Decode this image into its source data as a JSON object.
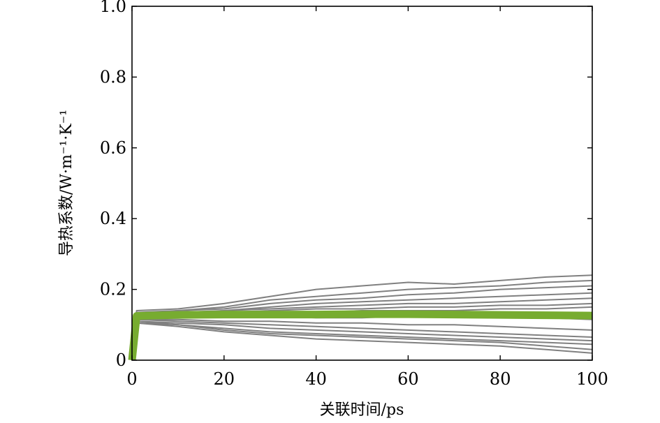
{
  "chart_data": {
    "type": "line",
    "title": "",
    "xlabel": "关联时间/ps",
    "ylabel": "导热系数/W·m⁻¹·K⁻¹",
    "xlim": [
      0,
      100
    ],
    "ylim": [
      0,
      1.0
    ],
    "xticks": [
      0,
      20,
      40,
      60,
      80,
      100
    ],
    "yticks": [
      0,
      0.2,
      0.4,
      0.6,
      0.8,
      1.0
    ],
    "xtick_labels": [
      "0",
      "20",
      "40",
      "60",
      "80",
      "100"
    ],
    "ytick_labels": [
      "0",
      "0.2",
      "0.4",
      "0.6",
      "0.8",
      "1.0"
    ],
    "grid": false,
    "legend": "none",
    "series": [
      {
        "role": "individual",
        "color": "#808080",
        "x": [
          0,
          1,
          10,
          20,
          30,
          40,
          50,
          60,
          70,
          80,
          90,
          100
        ],
        "values": [
          0,
          0.14,
          0.145,
          0.16,
          0.18,
          0.2,
          0.21,
          0.22,
          0.215,
          0.225,
          0.235,
          0.24
        ]
      },
      {
        "role": "individual",
        "color": "#808080",
        "x": [
          0,
          1,
          10,
          20,
          30,
          40,
          50,
          60,
          70,
          80,
          90,
          100
        ],
        "values": [
          0,
          0.135,
          0.14,
          0.15,
          0.17,
          0.18,
          0.19,
          0.2,
          0.205,
          0.21,
          0.22,
          0.225
        ]
      },
      {
        "role": "individual",
        "color": "#808080",
        "x": [
          0,
          1,
          10,
          20,
          30,
          40,
          50,
          60,
          70,
          80,
          90,
          100
        ],
        "values": [
          0,
          0.13,
          0.14,
          0.145,
          0.16,
          0.17,
          0.175,
          0.185,
          0.19,
          0.2,
          0.205,
          0.21
        ]
      },
      {
        "role": "individual",
        "color": "#808080",
        "x": [
          0,
          1,
          10,
          20,
          30,
          40,
          50,
          60,
          70,
          80,
          90,
          100
        ],
        "values": [
          0,
          0.13,
          0.135,
          0.14,
          0.15,
          0.16,
          0.165,
          0.17,
          0.175,
          0.18,
          0.185,
          0.19
        ]
      },
      {
        "role": "individual",
        "color": "#808080",
        "x": [
          0,
          1,
          10,
          20,
          30,
          40,
          50,
          60,
          70,
          80,
          90,
          100
        ],
        "values": [
          0,
          0.125,
          0.13,
          0.14,
          0.145,
          0.15,
          0.155,
          0.16,
          0.16,
          0.165,
          0.17,
          0.175
        ]
      },
      {
        "role": "individual",
        "color": "#808080",
        "x": [
          0,
          1,
          10,
          20,
          30,
          40,
          50,
          60,
          70,
          80,
          90,
          100
        ],
        "values": [
          0,
          0.125,
          0.13,
          0.135,
          0.14,
          0.145,
          0.145,
          0.15,
          0.15,
          0.155,
          0.155,
          0.16
        ]
      },
      {
        "role": "individual",
        "color": "#808080",
        "x": [
          0,
          1,
          10,
          20,
          30,
          40,
          50,
          60,
          70,
          80,
          90,
          100
        ],
        "values": [
          0,
          0.12,
          0.125,
          0.13,
          0.135,
          0.135,
          0.14,
          0.14,
          0.14,
          0.145,
          0.145,
          0.15
        ]
      },
      {
        "role": "individual",
        "color": "#808080",
        "x": [
          0,
          1,
          10,
          20,
          30,
          40,
          50,
          60,
          70,
          80,
          90,
          100
        ],
        "values": [
          0,
          0.12,
          0.12,
          0.125,
          0.125,
          0.12,
          0.12,
          0.125,
          0.125,
          0.12,
          0.12,
          0.115
        ]
      },
      {
        "role": "individual",
        "color": "#808080",
        "x": [
          0,
          1,
          10,
          20,
          30,
          40,
          50,
          60,
          70,
          80,
          90,
          100
        ],
        "values": [
          0,
          0.115,
          0.115,
          0.11,
          0.11,
          0.105,
          0.105,
          0.1,
          0.1,
          0.095,
          0.09,
          0.085
        ]
      },
      {
        "role": "individual",
        "color": "#808080",
        "x": [
          0,
          1,
          10,
          20,
          30,
          40,
          50,
          60,
          70,
          80,
          90,
          100
        ],
        "values": [
          0,
          0.115,
          0.11,
          0.105,
          0.1,
          0.095,
          0.09,
          0.085,
          0.08,
          0.075,
          0.07,
          0.065
        ]
      },
      {
        "role": "individual",
        "color": "#808080",
        "x": [
          0,
          1,
          10,
          20,
          30,
          40,
          50,
          60,
          70,
          80,
          90,
          100
        ],
        "values": [
          0,
          0.11,
          0.105,
          0.1,
          0.09,
          0.085,
          0.08,
          0.075,
          0.07,
          0.065,
          0.06,
          0.055
        ]
      },
      {
        "role": "individual",
        "color": "#808080",
        "x": [
          0,
          1,
          10,
          20,
          30,
          40,
          50,
          60,
          70,
          80,
          90,
          100
        ],
        "values": [
          0,
          0.11,
          0.1,
          0.09,
          0.08,
          0.075,
          0.07,
          0.065,
          0.06,
          0.055,
          0.05,
          0.045
        ]
      },
      {
        "role": "individual",
        "color": "#808080",
        "x": [
          0,
          1,
          10,
          20,
          30,
          40,
          50,
          60,
          70,
          80,
          90,
          100
        ],
        "values": [
          0,
          0.105,
          0.1,
          0.085,
          0.075,
          0.07,
          0.065,
          0.06,
          0.055,
          0.05,
          0.04,
          0.03
        ]
      },
      {
        "role": "individual",
        "color": "#808080",
        "x": [
          0,
          1,
          10,
          20,
          30,
          40,
          50,
          60,
          70,
          80,
          90,
          100
        ],
        "values": [
          0,
          0.105,
          0.095,
          0.08,
          0.07,
          0.06,
          0.055,
          0.05,
          0.045,
          0.04,
          0.03,
          0.02
        ]
      },
      {
        "role": "mean",
        "color": "#77ac30",
        "x": [
          0,
          1,
          10,
          20,
          30,
          40,
          50,
          60,
          70,
          80,
          90,
          100
        ],
        "values": [
          0,
          0.125,
          0.128,
          0.129,
          0.129,
          0.129,
          0.13,
          0.13,
          0.129,
          0.128,
          0.127,
          0.126
        ]
      }
    ]
  }
}
